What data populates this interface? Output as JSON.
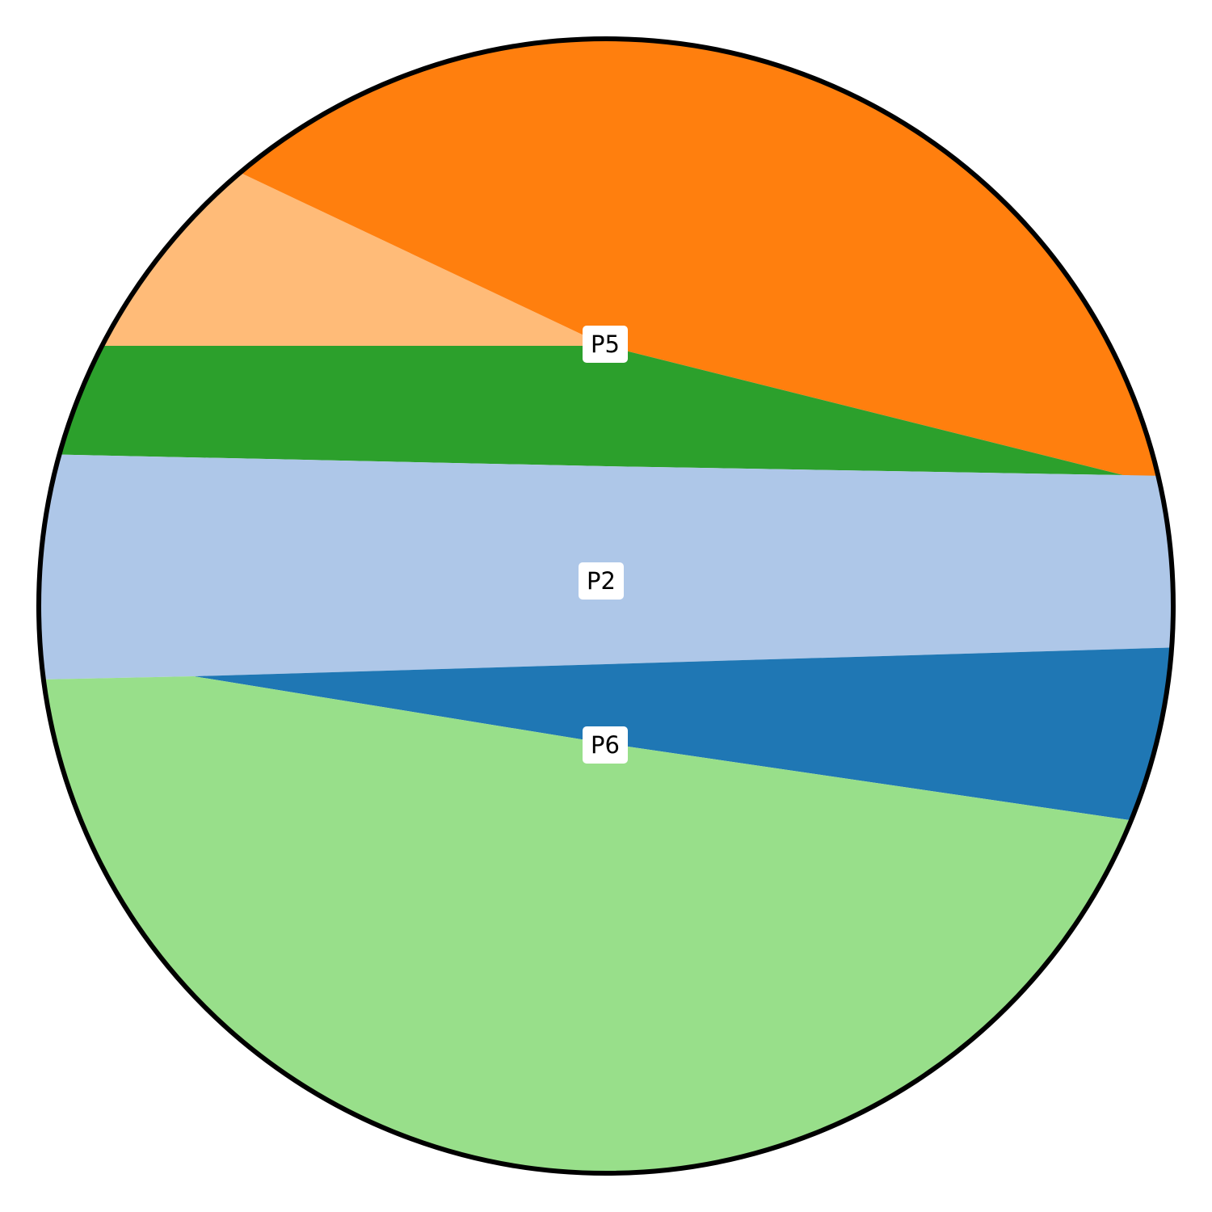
{
  "regions": [
    {
      "id": "orange",
      "color": "#ff7f0e"
    },
    {
      "id": "light-orange",
      "color": "#ffbb78"
    },
    {
      "id": "green",
      "color": "#2ca02c"
    },
    {
      "id": "light-blue",
      "color": "#aec7e8"
    },
    {
      "id": "blue",
      "color": "#1f77b4"
    },
    {
      "id": "light-green",
      "color": "#98df8a"
    }
  ],
  "labels": {
    "p5": "P5",
    "p2": "P2",
    "p6": "P6"
  },
  "outline_color": "#000000",
  "label_box_color": "#ffffff"
}
